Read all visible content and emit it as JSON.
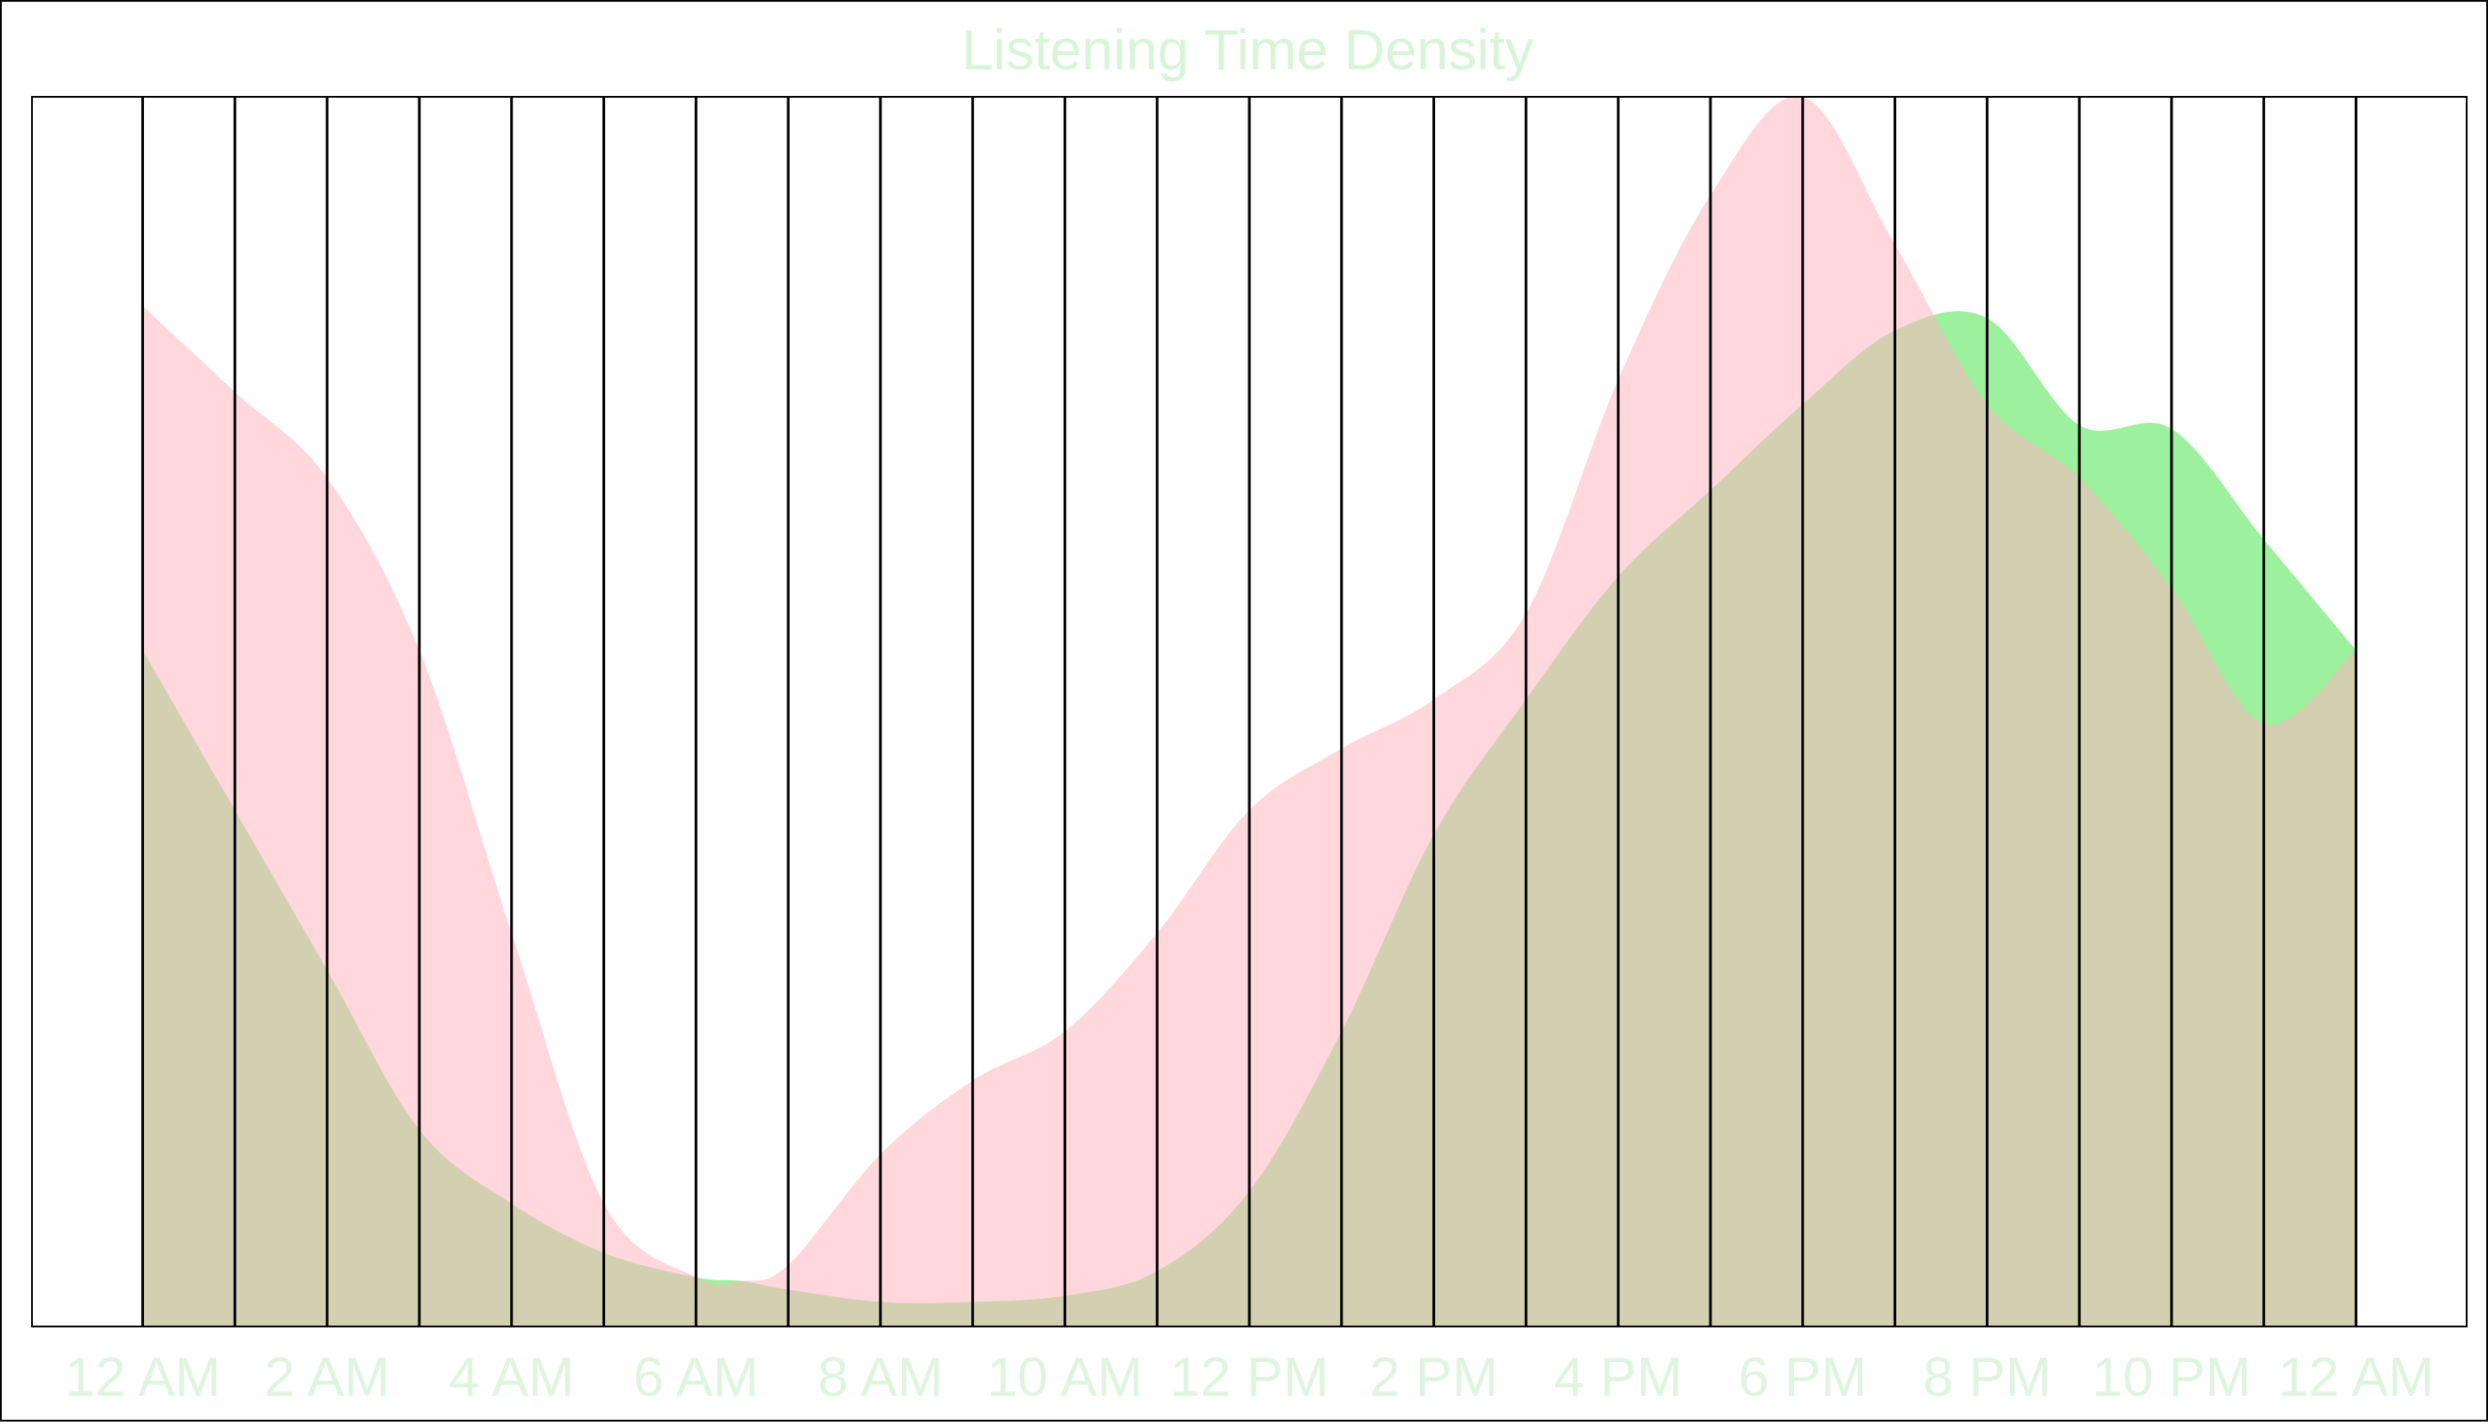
{
  "chart_data": {
    "type": "area",
    "title": "Listening Time Density",
    "xlabel": "",
    "ylabel": "",
    "x_ticks": [
      {
        "hour": 0,
        "label": "12 AM"
      },
      {
        "hour": 2,
        "label": "2 AM"
      },
      {
        "hour": 4,
        "label": "4 AM"
      },
      {
        "hour": 6,
        "label": "6 AM"
      },
      {
        "hour": 8,
        "label": "8 AM"
      },
      {
        "hour": 10,
        "label": "10 AM"
      },
      {
        "hour": 12,
        "label": "12 PM"
      },
      {
        "hour": 14,
        "label": "2 PM"
      },
      {
        "hour": 16,
        "label": "4 PM"
      },
      {
        "hour": 18,
        "label": "6 PM"
      },
      {
        "hour": 20,
        "label": "8 PM"
      },
      {
        "hour": 22,
        "label": "10 PM"
      },
      {
        "hour": 24,
        "label": "12 AM"
      }
    ],
    "x_range": [
      -1.2,
      25.2
    ],
    "y_range": [
      0,
      1
    ],
    "grid": true,
    "gridline_hours": [
      0,
      1,
      2,
      3,
      4,
      5,
      6,
      7,
      8,
      9,
      10,
      11,
      12,
      13,
      14,
      15,
      16,
      17,
      18,
      19,
      20,
      21,
      22,
      23,
      24
    ],
    "legend": "none",
    "series": [
      {
        "color": "#90ee90",
        "opacity": 0.88,
        "x": [
          0,
          1,
          2,
          3,
          4,
          5,
          6,
          6.5,
          7,
          8,
          9,
          10,
          11,
          12,
          13,
          14,
          15,
          16,
          17,
          18,
          19,
          20,
          21,
          22,
          23,
          24
        ],
        "y": [
          0.55,
          0.42,
          0.29,
          0.16,
          0.1,
          0.06,
          0.04,
          0.037,
          0.03,
          0.02,
          0.02,
          0.025,
          0.045,
          0.11,
          0.24,
          0.4,
          0.51,
          0.61,
          0.68,
          0.75,
          0.81,
          0.82,
          0.733,
          0.73,
          0.64,
          0.55
        ]
      },
      {
        "color": "#ffb6c1",
        "opacity": 0.55,
        "x": [
          0,
          1,
          2,
          3,
          4,
          5,
          6,
          6.5,
          7,
          8,
          9,
          10,
          11,
          12,
          13,
          14,
          15,
          16,
          17,
          18,
          19,
          20,
          21,
          22,
          23,
          24
        ],
        "y": [
          0.83,
          0.76,
          0.69,
          0.55,
          0.32,
          0.1,
          0.04,
          0.037,
          0.05,
          0.14,
          0.2,
          0.24,
          0.32,
          0.42,
          0.47,
          0.51,
          0.58,
          0.77,
          0.92,
          1.0,
          0.88,
          0.75,
          0.69,
          0.6,
          0.49,
          0.55
        ]
      }
    ],
    "colors": {
      "title": "#d8f5d8",
      "tick_label": "#dff5df",
      "gridline": "#000000",
      "frame": "#000000",
      "background": "#ffffff"
    }
  }
}
